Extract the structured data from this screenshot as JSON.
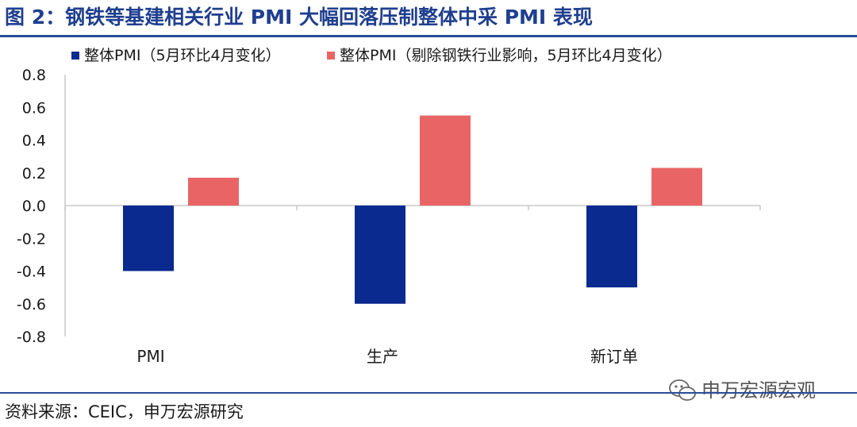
{
  "title": "图 2：钢铁等基建相关行业 PMI 大幅回落压制整体中采 PMI 表现",
  "source": "资料来源：CEIC，申万宏源研究",
  "watermark": "申万宏源宏观",
  "colors": {
    "title": "#1f3f8f",
    "series_blue": "#0b2a8f",
    "series_red": "#e96565",
    "grid": "#c8c8c8"
  },
  "chart_data": {
    "type": "bar",
    "categories": [
      "PMI",
      "生产",
      "新订单"
    ],
    "series": [
      {
        "name": "整体PMI（5月环比4月变化）",
        "values": [
          -0.4,
          -0.6,
          -0.5
        ]
      },
      {
        "name": "整体PMI（剔除钢铁行业影响，5月环比4月变化）",
        "values": [
          0.17,
          0.55,
          0.23
        ]
      }
    ],
    "ylim": [
      -0.8,
      0.8
    ],
    "yticks": [
      "0.8",
      "0.6",
      "0.4",
      "0.2",
      "0.0",
      "-0.2",
      "-0.4",
      "-0.6",
      "-0.8"
    ],
    "yticks_values": [
      0.8,
      0.6,
      0.4,
      0.2,
      0.0,
      -0.2,
      -0.4,
      -0.6,
      -0.8
    ],
    "legend_position": "top",
    "grid": false
  }
}
